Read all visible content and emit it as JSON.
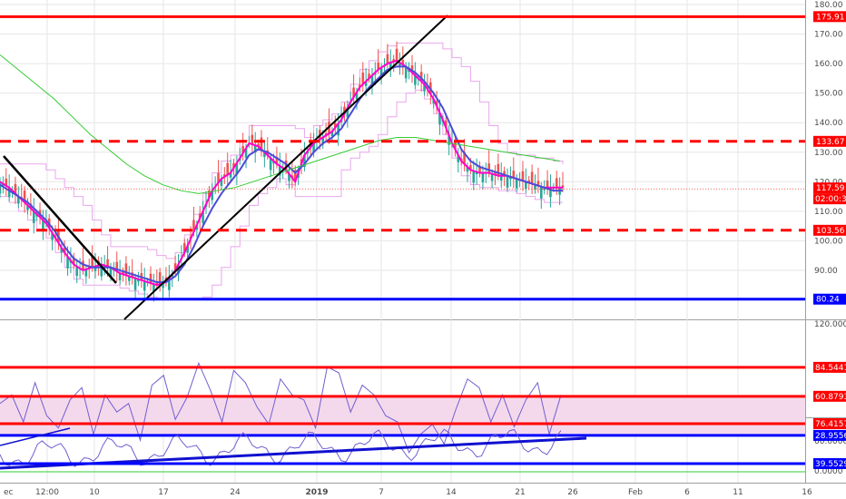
{
  "chart_data": [
    {
      "type": "line",
      "pane": "price",
      "title": "",
      "ylim": [
        76,
        182
      ],
      "yticks": [
        "180.00",
        "170.00",
        "160.00",
        "150.00",
        "140.00",
        "130.00",
        "120.00",
        "110.00",
        "100.00",
        "90.00"
      ],
      "ytick_values": [
        180,
        170,
        160,
        150,
        140,
        130,
        120,
        110,
        100,
        90
      ],
      "horizontal_levels": [
        {
          "value": 175.91,
          "label": "175.91",
          "color": "#ff0000",
          "style": "solid"
        },
        {
          "value": 133.67,
          "label": "133.67",
          "color": "#ff0000",
          "style": "dashed"
        },
        {
          "value": 103.56,
          "label": "103.56",
          "color": "#ff0000",
          "style": "dashed"
        },
        {
          "value": 80.24,
          "label": "80.24",
          "color": "#0000ff",
          "style": "solid"
        }
      ],
      "last_price": {
        "value": 117.59,
        "label": "117.59",
        "countdown": "02:00:39",
        "color": "#ff0000"
      },
      "series": [
        {
          "name": "",
          "color": "#ff00cc",
          "values": [
            120,
            118,
            115,
            112,
            109,
            106,
            101,
            96,
            92,
            90,
            91,
            92,
            91,
            89,
            88,
            87,
            86,
            85,
            86,
            90,
            96,
            103,
            110,
            117,
            121,
            123,
            128,
            133,
            132,
            129,
            126,
            124,
            120,
            129,
            133,
            135,
            137,
            141,
            147,
            152,
            155,
            158,
            160,
            161,
            159,
            156,
            153,
            148,
            141,
            133,
            127,
            124,
            123,
            123,
            122,
            122,
            121,
            120,
            119,
            118,
            118,
            118
          ]
        },
        {
          "name": "",
          "color": "#4b4bd8",
          "values": [
            119,
            117,
            115,
            113,
            110,
            107,
            103,
            98,
            94,
            92,
            91,
            91,
            91,
            90,
            89,
            88,
            87,
            86,
            86,
            88,
            92,
            98,
            105,
            111,
            116,
            120,
            124,
            129,
            131,
            130,
            128,
            126,
            123,
            126,
            130,
            133,
            135,
            138,
            143,
            148,
            152,
            155,
            158,
            159,
            159,
            157,
            154,
            150,
            145,
            138,
            131,
            127,
            125,
            124,
            123,
            122,
            121,
            120,
            119,
            118,
            117,
            117
          ]
        },
        {
          "name": "",
          "color": "#33cc33",
          "values": [
            163,
            158,
            153,
            148,
            142,
            136,
            131,
            126,
            122,
            119,
            117,
            116,
            117,
            118,
            120,
            122,
            124,
            126,
            128,
            130,
            132,
            134,
            135,
            135,
            134,
            133,
            132,
            131,
            130,
            129,
            128,
            127
          ]
        }
      ]
    },
    {
      "type": "line",
      "pane": "oscillator-1",
      "ylim": [
        -10,
        122
      ],
      "yticks": [
        "120.0000",
        "60.0000",
        "0.0000"
      ],
      "ytick_values": [
        120,
        60,
        0
      ],
      "horizontal_levels": [
        {
          "value": 84.5441,
          "label": "84.5441",
          "color": "#ff0000"
        },
        {
          "value": 60.8793,
          "label": "60.8793",
          "color": "#ff0000"
        },
        {
          "value": 28.9556,
          "label": "28.9556",
          "color": "#0000ff"
        }
      ],
      "series": [
        {
          "name": "",
          "color": "#6f5fcf",
          "values": [
            55,
            62,
            40,
            72,
            45,
            35,
            58,
            68,
            30,
            62,
            48,
            55,
            25,
            70,
            78,
            42,
            60,
            88,
            66,
            40,
            82,
            72,
            52,
            38,
            75,
            62,
            58,
            35,
            85,
            80,
            48,
            70,
            62,
            45,
            40,
            15,
            30,
            38,
            22,
            50,
            75,
            68,
            40,
            62,
            36,
            58,
            72,
            30,
            62
          ]
        }
      ]
    },
    {
      "type": "line",
      "pane": "oscillator-2",
      "yticks": [
        "60.0000"
      ],
      "ytick_values": [
        60
      ],
      "horizontal_levels": [
        {
          "value": 76.4157,
          "label": "76.4157",
          "color": "#ff0000"
        },
        {
          "value": 39.5529,
          "label": "39.5529",
          "color": "#0000ff"
        }
      ]
    }
  ],
  "xaxis": {
    "labels": [
      "ec",
      "12:00",
      "10",
      "17",
      "24",
      "2019",
      "7",
      "14",
      "21",
      "26",
      "Feb",
      "6",
      "11",
      "16"
    ],
    "bold": [
      "2019"
    ]
  },
  "colors": {
    "up_candle": "#26a69a",
    "down_candle": "#ef5350",
    "channel": "#e040fb",
    "trendline": "#000000",
    "grid": "#e6e6e6"
  }
}
